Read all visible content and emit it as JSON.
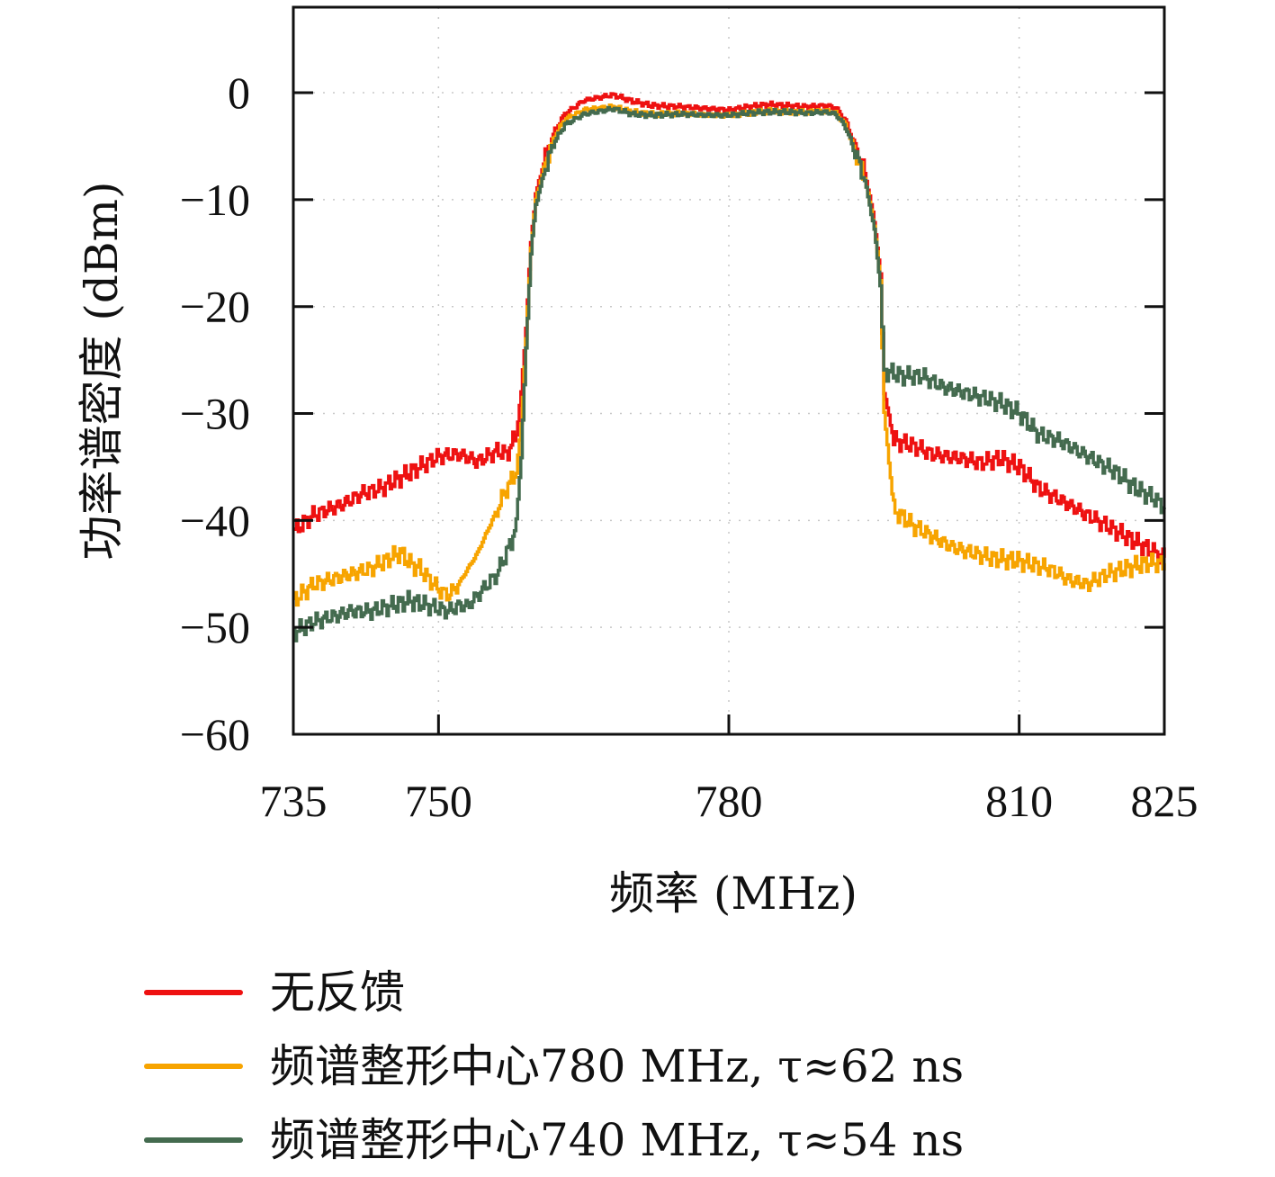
{
  "chart_data": {
    "type": "line",
    "xlabel": "频率 (MHz)",
    "ylabel": "功率谱密度 (dBm)",
    "xlim": [
      735,
      825
    ],
    "ylim": [
      -60,
      8
    ],
    "xticks": [
      735,
      750,
      780,
      810,
      825
    ],
    "yticks": [
      0,
      -10,
      -20,
      -30,
      -40,
      -50,
      -60
    ],
    "grid": true,
    "legend_position": "below",
    "series": [
      {
        "name": "无反馈",
        "color": "#ee1111",
        "x": [
          735,
          737,
          740,
          742,
          744,
          746,
          748,
          750,
          752,
          754,
          756,
          757,
          758,
          758.5,
          759,
          759.5,
          760,
          761,
          762,
          763,
          765,
          768,
          770,
          772,
          775,
          778,
          780,
          782,
          784,
          786,
          788,
          790,
          791,
          792,
          793,
          794,
          795,
          795.6,
          796,
          797,
          799,
          801,
          804,
          806,
          808,
          810,
          812,
          814,
          816,
          818,
          820,
          822,
          824,
          825
        ],
        "y": [
          -41,
          -39.5,
          -38.5,
          -37.5,
          -37,
          -36,
          -35,
          -34,
          -33.8,
          -34.5,
          -33.5,
          -33.8,
          -32,
          -28,
          -22,
          -14,
          -9.5,
          -6,
          -3.5,
          -2,
          -0.7,
          -0.2,
          -0.8,
          -1.2,
          -1.3,
          -1.5,
          -1.6,
          -1.3,
          -1.1,
          -1.2,
          -1.3,
          -1.2,
          -1.4,
          -2.6,
          -5,
          -7.5,
          -12,
          -17,
          -28,
          -32.5,
          -33,
          -33.8,
          -34.2,
          -34.6,
          -34.2,
          -35,
          -37,
          -38,
          -39,
          -40,
          -41,
          -42,
          -43,
          -43.5
        ]
      },
      {
        "name": "频谱整形中心780 MHz, τ≈62 ns",
        "color": "#f7a400",
        "x": [
          735,
          737,
          739,
          741,
          743,
          745,
          746,
          747,
          748,
          749,
          750,
          751,
          752,
          754,
          756,
          757,
          758,
          758.5,
          759,
          759.5,
          760,
          761,
          762,
          763,
          765,
          768,
          770,
          772,
          775,
          778,
          780,
          782,
          784,
          786,
          788,
          790,
          791,
          792,
          793,
          794,
          795,
          795.6,
          796,
          797,
          799,
          801,
          803,
          805,
          807,
          810,
          813,
          815,
          817,
          819,
          821,
          823,
          825
        ],
        "y": [
          -47.5,
          -46,
          -45.5,
          -45,
          -44.5,
          -43.5,
          -43,
          -44,
          -44.5,
          -45.5,
          -46.5,
          -47,
          -46,
          -43,
          -39,
          -37,
          -35.5,
          -31,
          -23,
          -14.5,
          -10,
          -6.5,
          -4,
          -2.5,
          -1.6,
          -1.3,
          -1.8,
          -2,
          -1.9,
          -2.1,
          -2.1,
          -1.9,
          -1.7,
          -1.8,
          -1.8,
          -1.7,
          -1.9,
          -3,
          -5.5,
          -8,
          -12.5,
          -17.5,
          -30,
          -39,
          -40.5,
          -41.5,
          -42.5,
          -43,
          -43.5,
          -43.8,
          -44.5,
          -45.5,
          -46,
          -45,
          -44.5,
          -44,
          -44
        ]
      },
      {
        "name": "频谱整形中心740 MHz, τ≈54 ns",
        "color": "#446b4f",
        "x": [
          735,
          737,
          739,
          741,
          743,
          745,
          747,
          749,
          751,
          752,
          753,
          754,
          755,
          756,
          757,
          757.5,
          758,
          758.5,
          759,
          759.5,
          760,
          761,
          762,
          763,
          765,
          768,
          770,
          772,
          775,
          778,
          780,
          782,
          784,
          786,
          788,
          790,
          791,
          792,
          793,
          794,
          795,
          795.6,
          796,
          798,
          800,
          802,
          804,
          806,
          808,
          810,
          812,
          814,
          816,
          818,
          820,
          822,
          824,
          825
        ],
        "y": [
          -50.5,
          -49.5,
          -49,
          -48.5,
          -48.5,
          -48,
          -47.5,
          -48,
          -48.5,
          -48,
          -48,
          -47,
          -46,
          -45,
          -43,
          -42,
          -40,
          -34,
          -24,
          -15,
          -10.5,
          -7,
          -4.5,
          -3,
          -2,
          -1.5,
          -2,
          -2.1,
          -2,
          -2.1,
          -2.1,
          -1.9,
          -1.8,
          -1.8,
          -1.9,
          -1.8,
          -2,
          -3.2,
          -5.5,
          -8.2,
          -12.8,
          -18,
          -26,
          -26.5,
          -26.5,
          -27.5,
          -28,
          -28.5,
          -29,
          -30,
          -32,
          -32.5,
          -33.5,
          -34.5,
          -35.5,
          -37,
          -38,
          -38.8
        ]
      }
    ]
  }
}
